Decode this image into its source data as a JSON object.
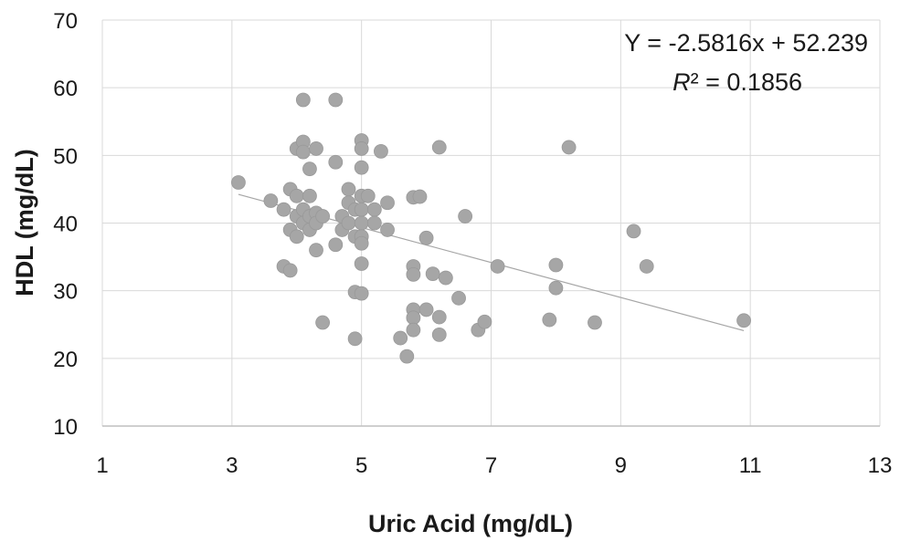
{
  "chart_data": {
    "type": "scatter",
    "title": "",
    "xlabel": "Uric Acid (mg/dL)",
    "ylabel": "HDL (mg/dL)",
    "xlim": [
      1,
      13
    ],
    "ylim": [
      10,
      70
    ],
    "x_ticks": [
      "1",
      "3",
      "5",
      "7",
      "9",
      "11",
      "13"
    ],
    "y_ticks": [
      "10",
      "20",
      "30",
      "40",
      "50",
      "60",
      "70"
    ],
    "grid": true,
    "legend": "none",
    "colors": {
      "points": "#a6a6a6",
      "trendline": "#a6a6a6",
      "grid": "#d9d9d9"
    },
    "trendline": {
      "type": "linear",
      "slope": -2.5816,
      "intercept": 52.239,
      "x_range": [
        3.1,
        10.9
      ],
      "equation": "Y = -2.5816x + 52.239",
      "r2_symbol": "R",
      "r2_rest": "² = 0.1856"
    },
    "points": [
      [
        3.1,
        46.0
      ],
      [
        3.6,
        43.3
      ],
      [
        3.8,
        42.0
      ],
      [
        3.8,
        33.6
      ],
      [
        3.9,
        45.0
      ],
      [
        3.9,
        39.0
      ],
      [
        3.9,
        33.0
      ],
      [
        4.0,
        51.0
      ],
      [
        4.0,
        44.0
      ],
      [
        4.0,
        41.0
      ],
      [
        4.0,
        38.0
      ],
      [
        4.1,
        58.2
      ],
      [
        4.1,
        52.0
      ],
      [
        4.1,
        50.5
      ],
      [
        4.1,
        42.0
      ],
      [
        4.1,
        40.0
      ],
      [
        4.2,
        48.0
      ],
      [
        4.2,
        44.0
      ],
      [
        4.2,
        41.0
      ],
      [
        4.2,
        39.0
      ],
      [
        4.3,
        51.0
      ],
      [
        4.3,
        41.5
      ],
      [
        4.3,
        40.0
      ],
      [
        4.3,
        36.0
      ],
      [
        4.4,
        41.0
      ],
      [
        4.4,
        25.3
      ],
      [
        4.6,
        58.2
      ],
      [
        4.6,
        49.0
      ],
      [
        4.6,
        36.8
      ],
      [
        4.7,
        41.0
      ],
      [
        4.7,
        39.0
      ],
      [
        4.8,
        45.0
      ],
      [
        4.8,
        43.0
      ],
      [
        4.8,
        40.0
      ],
      [
        4.9,
        42.0
      ],
      [
        4.9,
        38.0
      ],
      [
        4.9,
        29.8
      ],
      [
        4.9,
        22.9
      ],
      [
        5.0,
        52.2
      ],
      [
        5.0,
        51.0
      ],
      [
        5.0,
        48.2
      ],
      [
        5.0,
        44.0
      ],
      [
        5.0,
        42.0
      ],
      [
        5.0,
        40.0
      ],
      [
        5.0,
        38.0
      ],
      [
        5.0,
        37.0
      ],
      [
        5.0,
        34.0
      ],
      [
        5.0,
        29.6
      ],
      [
        5.1,
        44.0
      ],
      [
        5.2,
        42.0
      ],
      [
        5.2,
        40.0
      ],
      [
        5.3,
        50.6
      ],
      [
        5.4,
        43.0
      ],
      [
        5.4,
        39.0
      ],
      [
        5.6,
        23.0
      ],
      [
        5.7,
        20.3
      ],
      [
        5.8,
        43.8
      ],
      [
        5.8,
        33.6
      ],
      [
        5.8,
        32.4
      ],
      [
        5.8,
        27.2
      ],
      [
        5.8,
        26.0
      ],
      [
        5.8,
        24.2
      ],
      [
        5.9,
        43.9
      ],
      [
        6.0,
        37.8
      ],
      [
        6.0,
        27.2
      ],
      [
        6.1,
        32.5
      ],
      [
        6.2,
        51.2
      ],
      [
        6.2,
        26.1
      ],
      [
        6.2,
        23.5
      ],
      [
        6.3,
        31.9
      ],
      [
        6.5,
        28.9
      ],
      [
        6.6,
        41.0
      ],
      [
        6.8,
        24.2
      ],
      [
        6.9,
        25.4
      ],
      [
        7.1,
        33.6
      ],
      [
        7.9,
        25.7
      ],
      [
        8.0,
        33.8
      ],
      [
        8.0,
        30.4
      ],
      [
        8.2,
        51.2
      ],
      [
        8.6,
        25.3
      ],
      [
        9.2,
        38.8
      ],
      [
        9.4,
        33.6
      ],
      [
        10.9,
        25.6
      ]
    ]
  }
}
